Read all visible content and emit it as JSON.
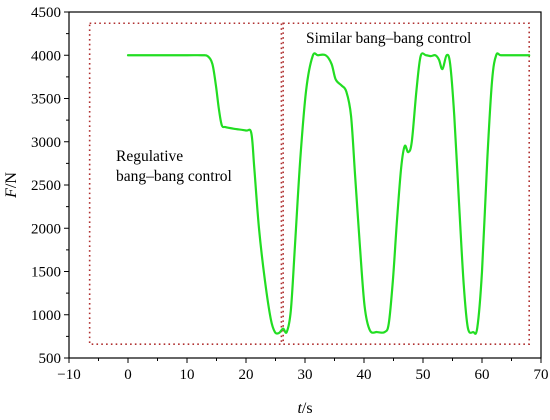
{
  "chart_data": {
    "type": "line",
    "title": "",
    "xlabel_italic": "t",
    "xlabel_unit": "/s",
    "ylabel_italic": "F",
    "ylabel_unit": "/N",
    "xlim": [
      -10,
      70
    ],
    "ylim": [
      500,
      4500
    ],
    "xticks": [
      -10,
      0,
      10,
      20,
      30,
      40,
      50,
      60,
      70
    ],
    "yticks": [
      500,
      1000,
      1500,
      2000,
      2500,
      3000,
      3500,
      4000,
      4500
    ],
    "grid": false,
    "line_color": "#22dd22",
    "box_color": "#b03030",
    "series": [
      {
        "x": [
          0,
          5,
          10,
          12.5,
          13.5,
          14.3,
          14.9,
          15.4,
          15.9,
          16.5,
          18,
          20,
          20.9,
          21.4,
          22.2,
          23.2,
          24.2,
          24.9,
          25.6,
          26.3,
          26.9,
          27.6,
          28.3,
          29.2,
          30.2,
          31.3,
          32.2,
          33.5,
          34.5,
          35.2,
          36.2,
          37,
          37.8,
          38.5,
          39.3,
          40.1,
          41,
          42.2,
          43.5,
          44.2,
          44.9,
          45.6,
          46.3,
          46.9,
          47.5,
          48.1,
          48.9,
          49.6,
          50.5,
          51.3,
          52.1,
          52.7,
          53.3,
          54,
          54.6,
          55.3,
          56.1,
          56.9,
          57.6,
          58.5,
          59.2,
          60,
          60.9,
          61.7,
          62.4,
          63.2,
          65,
          68
        ],
        "y": [
          4000,
          4000,
          4000,
          4000,
          3990,
          3900,
          3650,
          3380,
          3190,
          3170,
          3150,
          3130,
          3100,
          2700,
          2000,
          1400,
          950,
          800,
          790,
          840,
          800,
          1050,
          1800,
          2800,
          3600,
          3990,
          4000,
          4000,
          3900,
          3720,
          3650,
          3580,
          3300,
          2600,
          1800,
          1100,
          820,
          800,
          800,
          900,
          1400,
          2100,
          2700,
          2950,
          2880,
          3000,
          3600,
          3990,
          4000,
          3990,
          4000,
          3950,
          3840,
          4000,
          3900,
          3300,
          2300,
          1350,
          850,
          800,
          850,
          1500,
          2800,
          3700,
          4000,
          4000,
          4000,
          4000
        ]
      }
    ],
    "regions": [
      {
        "label_lines": [
          "Regulative",
          "bang–bang control"
        ],
        "x_range": [
          -6.5,
          26
        ],
        "y_range": [
          660,
          4370
        ]
      },
      {
        "label_lines": [
          "Similar bang–bang control"
        ],
        "x_range": [
          26.3,
          68
        ],
        "y_range": [
          660,
          4370
        ]
      }
    ]
  }
}
